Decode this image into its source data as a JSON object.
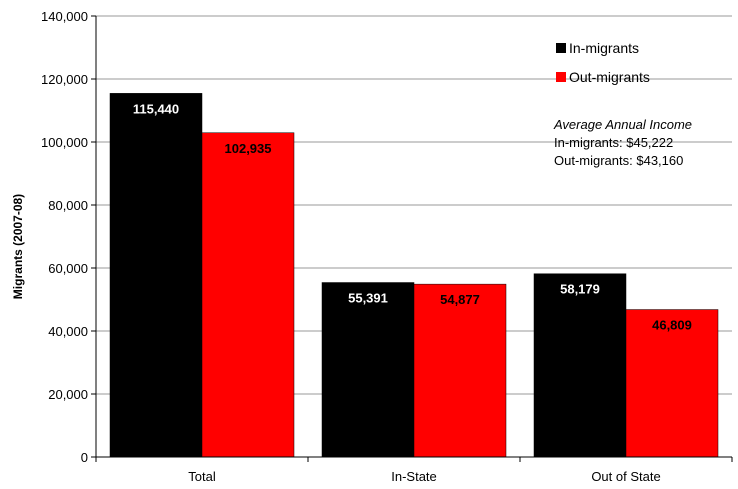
{
  "chart_data": {
    "type": "bar",
    "categories": [
      "Total",
      "In-State",
      "Out of State"
    ],
    "series": [
      {
        "name": "In-migrants",
        "values": [
          115440,
          55391,
          58179
        ],
        "color": "#000000",
        "label_color": "#ffffff"
      },
      {
        "name": "Out-migrants",
        "values": [
          102935,
          54877,
          46809
        ],
        "color": "#ff0000",
        "label_color": "#000000"
      }
    ],
    "data_labels": [
      [
        "115,440",
        "55,391",
        "58,179"
      ],
      [
        "102,935",
        "54,877",
        "46,809"
      ]
    ],
    "ylabel": "Migrants (2007-08)",
    "ylim": [
      0,
      140000
    ],
    "yticks": [
      0,
      20000,
      40000,
      60000,
      80000,
      100000,
      120000,
      140000
    ],
    "ytick_labels": [
      "0",
      "20,000",
      "40,000",
      "60,000",
      "80,000",
      "100,000",
      "120,000",
      "140,000"
    ],
    "grid": true,
    "legend_position": "top-right",
    "annotation": {
      "title": "Average Annual Income",
      "lines": [
        "In-migrants: $45,222",
        "Out-migrants: $43,160"
      ]
    }
  }
}
